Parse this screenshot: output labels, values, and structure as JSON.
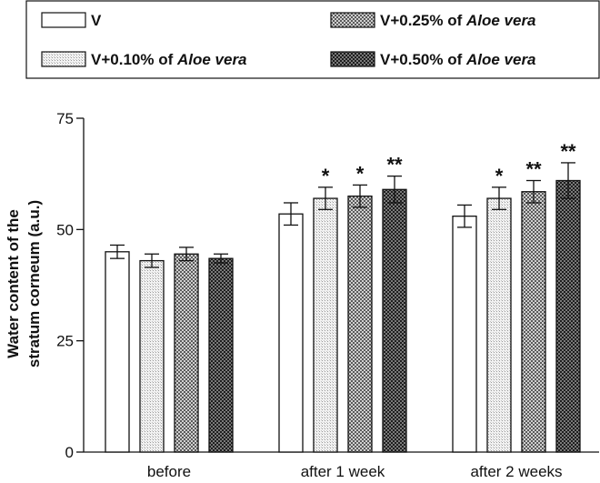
{
  "chart_data": {
    "type": "bar",
    "ylabel_lines": [
      "Water content of the",
      "stratum corneum (a.u.)"
    ],
    "xlabel": "",
    "ylim": [
      0,
      75
    ],
    "yticks": [
      0,
      25,
      50,
      75
    ],
    "categories": [
      "before",
      "after 1 week",
      "after 2 weeks"
    ],
    "legend_placement": "top",
    "series": [
      {
        "name": "V",
        "pattern": "white",
        "values": [
          45,
          53.5,
          53
        ],
        "errors": [
          1.5,
          2.5,
          2.5
        ],
        "sig": [
          "",
          "",
          ""
        ]
      },
      {
        "name_prefix": "V+0.10% of ",
        "name_italic": "Aloe vera",
        "pattern": "light-grid",
        "values": [
          43,
          57,
          57
        ],
        "errors": [
          1.5,
          2.5,
          2.5
        ],
        "sig": [
          "",
          "*",
          "*"
        ]
      },
      {
        "name_prefix": "V+0.25% of ",
        "name_italic": "Aloe vera",
        "pattern": "medium-check",
        "values": [
          44.5,
          57.5,
          58.5
        ],
        "errors": [
          1.5,
          2.5,
          2.5
        ],
        "sig": [
          "",
          "*",
          "**"
        ]
      },
      {
        "name_prefix": "V+0.50% of ",
        "name_italic": "Aloe vera",
        "pattern": "dark-check",
        "values": [
          43.5,
          59,
          61
        ],
        "errors": [
          1,
          3,
          4
        ],
        "sig": [
          "",
          "**",
          "**"
        ]
      }
    ]
  }
}
